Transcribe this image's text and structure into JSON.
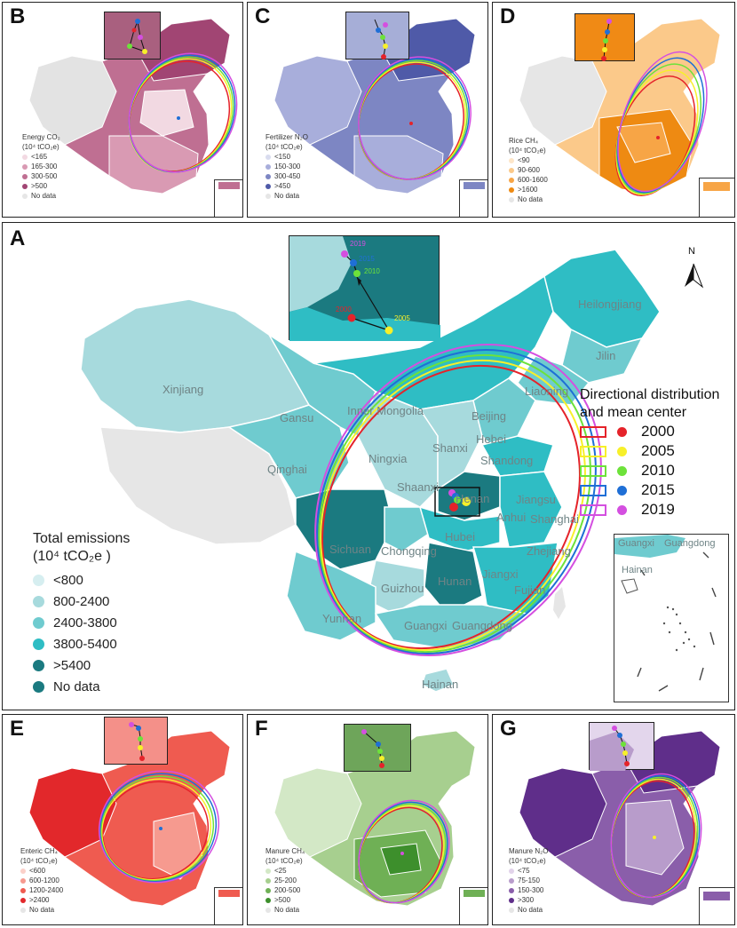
{
  "panels": {
    "B": {
      "label": "B",
      "legend_title": [
        "Energy CO₂",
        "(10⁴ tCO₂e)"
      ],
      "classes": [
        "<165",
        "165-300",
        "300-500",
        ">500",
        "No data"
      ],
      "colors": [
        "#f2d9e2",
        "#d99ab3",
        "#bf6f92",
        "#a14573",
        "#e6e6e6"
      ],
      "inset_bg": "#a9607f"
    },
    "C": {
      "label": "C",
      "legend_title": [
        "Fertilizer N₂O",
        "(10⁴ tCO₂e)"
      ],
      "classes": [
        "<150",
        "150-300",
        "300-450",
        ">450",
        "No data"
      ],
      "colors": [
        "#d9dcef",
        "#a8aedb",
        "#7d86c3",
        "#4f5aa8",
        "#e6e6e6"
      ],
      "inset_bg": "#a6aed7"
    },
    "D": {
      "label": "D",
      "legend_title": [
        "Rice CH₄",
        "(10⁴ tCO₂e)"
      ],
      "classes": [
        "<90",
        "90-600",
        "600-1600",
        ">1600",
        "No data"
      ],
      "colors": [
        "#fde6c8",
        "#fbc98a",
        "#f7a546",
        "#ee8a12",
        "#e6e6e6"
      ],
      "inset_bg": "#f08a15"
    },
    "E": {
      "label": "E",
      "legend_title": [
        "Enteric CH₄",
        "(10⁴ tCO₂e)"
      ],
      "classes": [
        "<600",
        "600-1200",
        "1200-2400",
        ">2400",
        "No data"
      ],
      "colors": [
        "#fbd0c9",
        "#f69a8f",
        "#ef5b50",
        "#e2282b",
        "#e6e6e6"
      ],
      "inset_bg": "#f49089"
    },
    "F": {
      "label": "F",
      "legend_title": [
        "Manure CH₄",
        "(10⁴ tCO₂e)"
      ],
      "classes": [
        "<25",
        "25-200",
        "200-500",
        ">500",
        "No data"
      ],
      "colors": [
        "#d3e8c6",
        "#a7cf8f",
        "#6fb055",
        "#3d8f2c",
        "#e6e6e6"
      ],
      "inset_bg": "#6ea55a"
    },
    "G": {
      "label": "G",
      "legend_title": [
        "Manure N₂O",
        "(10⁴ tCO₂e)"
      ],
      "classes": [
        "<75",
        "75-150",
        "150-300",
        ">300",
        "No data"
      ],
      "colors": [
        "#e2d3ea",
        "#b89ccb",
        "#8a5eaa",
        "#5f2e8a",
        "#e6e6e6"
      ],
      "inset_bg": "#e3d6ec"
    }
  },
  "main": {
    "label": "A",
    "legend_title_line1": "Total emissions",
    "legend_title_line2": "(10⁴ tCO₂e )",
    "classes": [
      "<800",
      "800-2400",
      "2400-3800",
      "3800-5400",
      ">5400",
      "No data"
    ],
    "colors": [
      "#d6eef0",
      "#a7dadd",
      "#6fcbcf",
      "#2fbdc4",
      "#1b7a80",
      "#1b7a80"
    ],
    "north_label": "N",
    "dd_legend_title_line1": "Directional distribution",
    "dd_legend_title_line2": "and mean center",
    "years": [
      "2000",
      "2005",
      "2010",
      "2015",
      "2019"
    ],
    "year_colors": [
      "#e5232a",
      "#f7f02a",
      "#6de23a",
      "#1f6fd6",
      "#d44fe0"
    ],
    "provinces": {
      "heilongjiang": "Heilongjiang",
      "jilin": "Jilin",
      "liaoning": "Liaoning",
      "xinjiang": "Xinjiang",
      "gansu": "Gansu",
      "inner_mongolia": "Inner Mongolia",
      "beijing": "Beijing",
      "hebei": "Hebei",
      "shanxi": "Shanxi",
      "shandong": "Shandong",
      "ningxia": "Ningxia",
      "qinghai": "Qinghai",
      "shaanxi": "Shaanxi",
      "henan": "Henan",
      "jiangsu": "Jiangsu",
      "anhui": "Anhui",
      "shanghai": "Shanghai",
      "hubei": "Hubei",
      "sichuan": "Sichuan",
      "chongqing": "Chongqing",
      "zhejiang": "Zhejiang",
      "jiangxi": "Jiangxi",
      "hunan": "Hunan",
      "guizhou": "Guizhou",
      "fujian": "Fujian",
      "yunnan": "Yunnan",
      "guangxi": "Guangxi",
      "guangdong": "Guangdong",
      "hainan": "Hainan"
    },
    "sea_inset_labels": {
      "guangxi": "Guangxi",
      "guangdong": "Guangdong",
      "hainan": "Hainan"
    },
    "zoom_labels": [
      "2000",
      "2005",
      "2010",
      "2015",
      "2019"
    ]
  }
}
